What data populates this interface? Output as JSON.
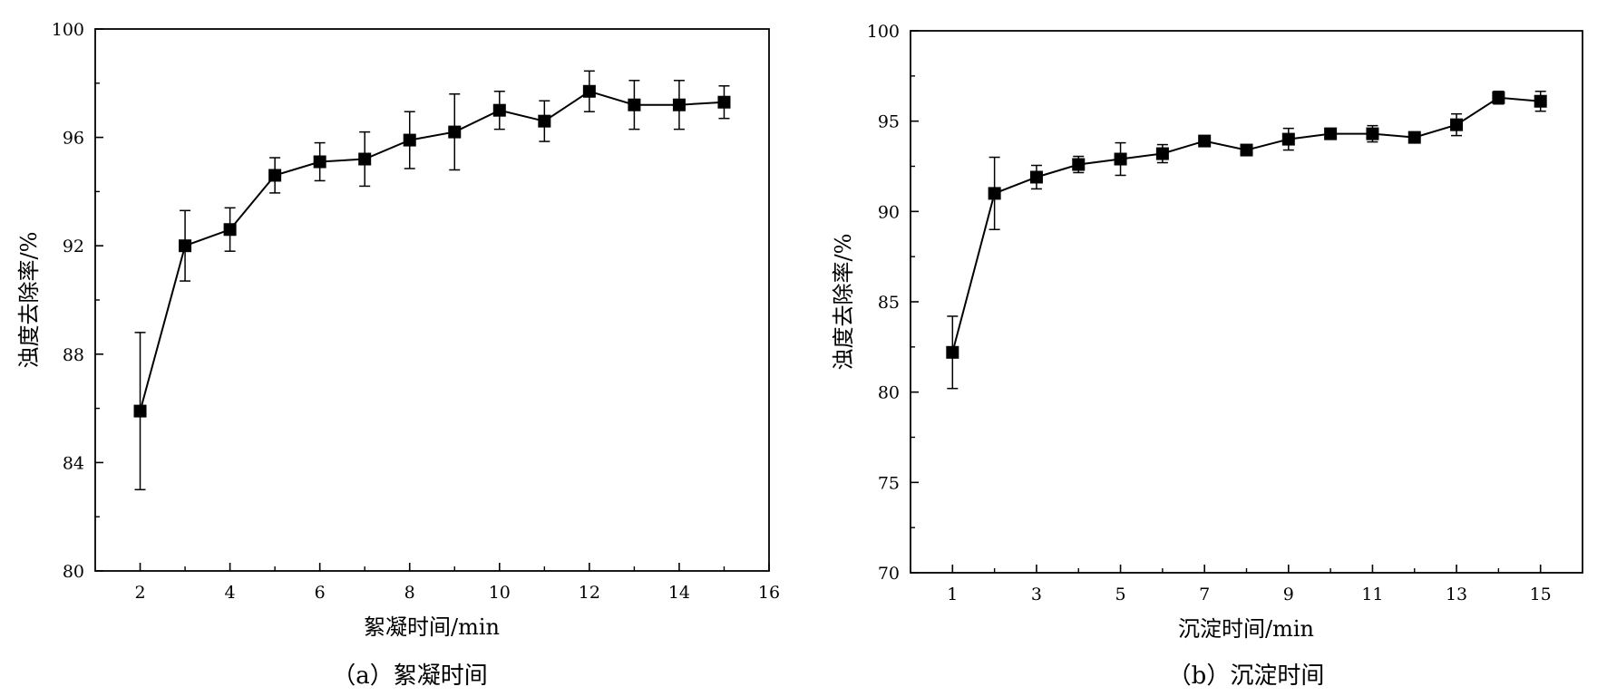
{
  "chart_data": [
    {
      "type": "line",
      "caption": "（a）絮凝时间",
      "xlabel": "絮凝时间/min",
      "ylabel": "浊度去除率/%",
      "xlim": [
        1,
        16
      ],
      "ylim": [
        80,
        100
      ],
      "xticks": [
        2,
        4,
        6,
        8,
        10,
        12,
        14,
        16
      ],
      "yticks": [
        80,
        84,
        88,
        92,
        96,
        100
      ],
      "grid": false,
      "marker": "square",
      "color": "#000000",
      "series": [
        {
          "x": [
            2,
            3,
            4,
            5,
            6,
            7,
            8,
            9,
            10,
            11,
            12,
            13,
            14,
            15
          ],
          "y": [
            85.9,
            92.0,
            92.6,
            94.6,
            95.1,
            95.2,
            95.9,
            96.2,
            97.0,
            96.6,
            97.7,
            97.2,
            97.2,
            97.3
          ],
          "err": [
            2.9,
            1.3,
            0.8,
            0.65,
            0.7,
            1.0,
            1.05,
            1.4,
            0.7,
            0.75,
            0.75,
            0.9,
            0.9,
            0.6
          ]
        }
      ]
    },
    {
      "type": "line",
      "caption": "（b）沉淀时间",
      "xlabel": "沉淀时间/min",
      "ylabel": "浊度去除率/%",
      "xlim": [
        0,
        16
      ],
      "ylim": [
        70,
        100
      ],
      "xticks": [
        1,
        3,
        5,
        7,
        9,
        11,
        13,
        15
      ],
      "yticks": [
        70,
        75,
        80,
        85,
        90,
        95,
        100
      ],
      "grid": false,
      "marker": "square",
      "color": "#000000",
      "series": [
        {
          "x": [
            1,
            2,
            3,
            4,
            5,
            6,
            7,
            8,
            9,
            10,
            11,
            12,
            13,
            14,
            15
          ],
          "y": [
            82.2,
            91.0,
            91.9,
            92.6,
            92.9,
            93.2,
            93.9,
            93.4,
            94.0,
            94.3,
            94.3,
            94.1,
            94.8,
            96.3,
            96.1
          ],
          "err": [
            2.0,
            2.0,
            0.65,
            0.45,
            0.9,
            0.5,
            0.25,
            0.2,
            0.6,
            0.2,
            0.45,
            0.2,
            0.6,
            0.35,
            0.55
          ]
        }
      ]
    }
  ]
}
